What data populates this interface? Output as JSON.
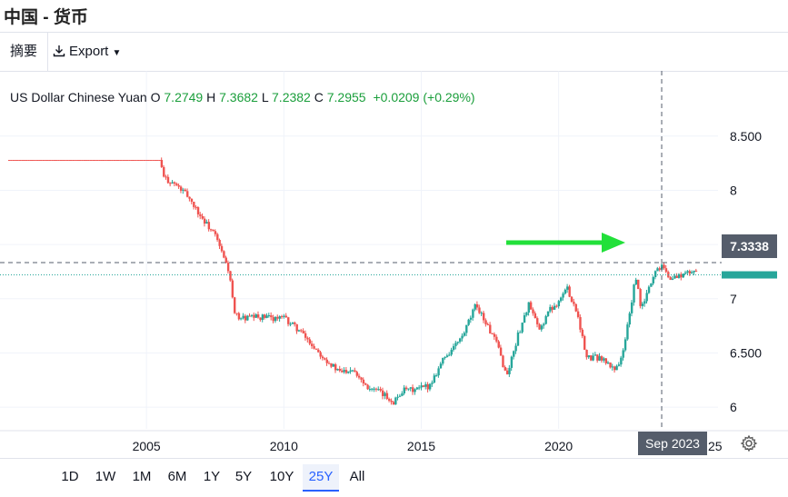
{
  "window": {
    "title": "中国 - 货币"
  },
  "toolbar": {
    "summary_tab": "摘要",
    "export_label": "Export"
  },
  "legend": {
    "symbol": "US Dollar Chinese Yuan",
    "o_label": "O",
    "o_value": "7.2749",
    "h_label": "H",
    "h_value": "7.3682",
    "l_label": "L",
    "l_value": "7.2382",
    "c_label": "C",
    "c_value": "7.2955",
    "change": "+0.0209 (+0.29%)"
  },
  "crosshair": {
    "price": "7.3338",
    "date": "Sep 2023"
  },
  "ranges": [
    "1D",
    "1W",
    "1M",
    "6M",
    "1Y",
    "5Y",
    "10Y",
    "25Y",
    "All"
  ],
  "active_range": "25Y",
  "colors": {
    "up": "#26a69a",
    "down": "#ef5350",
    "arrow": "#22e03a",
    "crosshair": "#555d6b"
  },
  "chart_data": {
    "type": "candlestick",
    "y_ticks": [
      "8.500",
      "8",
      "7.500",
      "7",
      "6.500",
      "6"
    ],
    "y_tick_values": [
      8.5,
      8.0,
      7.5,
      7.0,
      6.5,
      6.0
    ],
    "x_ticks": [
      "2005",
      "2010",
      "2015",
      "2020"
    ],
    "x_tick_values": [
      2005,
      2010,
      2015,
      2020
    ],
    "ylim": [
      5.8,
      8.85
    ],
    "xlim": [
      2000.0,
      2025.8
    ],
    "grid": true,
    "series": [
      {
        "x": [
          2000.0,
          2005.5,
          2005.6,
          2006.0,
          2006.5,
          2007.0,
          2007.5,
          2008.0,
          2008.2,
          2008.5,
          2009.0,
          2010.0,
          2010.5,
          2011.0,
          2011.5,
          2012.0,
          2012.5,
          2013.0,
          2013.5,
          2014.0,
          2014.3,
          2014.8,
          2015.3,
          2015.8,
          2016.0,
          2016.5,
          2017.0,
          2017.3,
          2017.8,
          2018.1,
          2018.5,
          2018.9,
          2019.3,
          2019.6,
          2019.9,
          2020.3,
          2020.7,
          2021.0,
          2021.5,
          2022.0,
          2022.3,
          2022.8,
          2023.0,
          2023.5,
          2023.8,
          2024.0,
          2024.5,
          2025.0
        ],
        "y": [
          8.28,
          8.28,
          8.12,
          8.06,
          7.95,
          7.75,
          7.58,
          7.25,
          6.85,
          6.82,
          6.83,
          6.82,
          6.72,
          6.58,
          6.45,
          6.32,
          6.36,
          6.2,
          6.13,
          6.05,
          6.15,
          6.16,
          6.2,
          6.45,
          6.5,
          6.65,
          6.95,
          6.8,
          6.55,
          6.28,
          6.65,
          6.95,
          6.7,
          6.88,
          6.95,
          7.1,
          6.85,
          6.45,
          6.46,
          6.35,
          6.45,
          7.2,
          6.9,
          7.25,
          7.33,
          7.18,
          7.22,
          7.26
        ]
      }
    ]
  }
}
